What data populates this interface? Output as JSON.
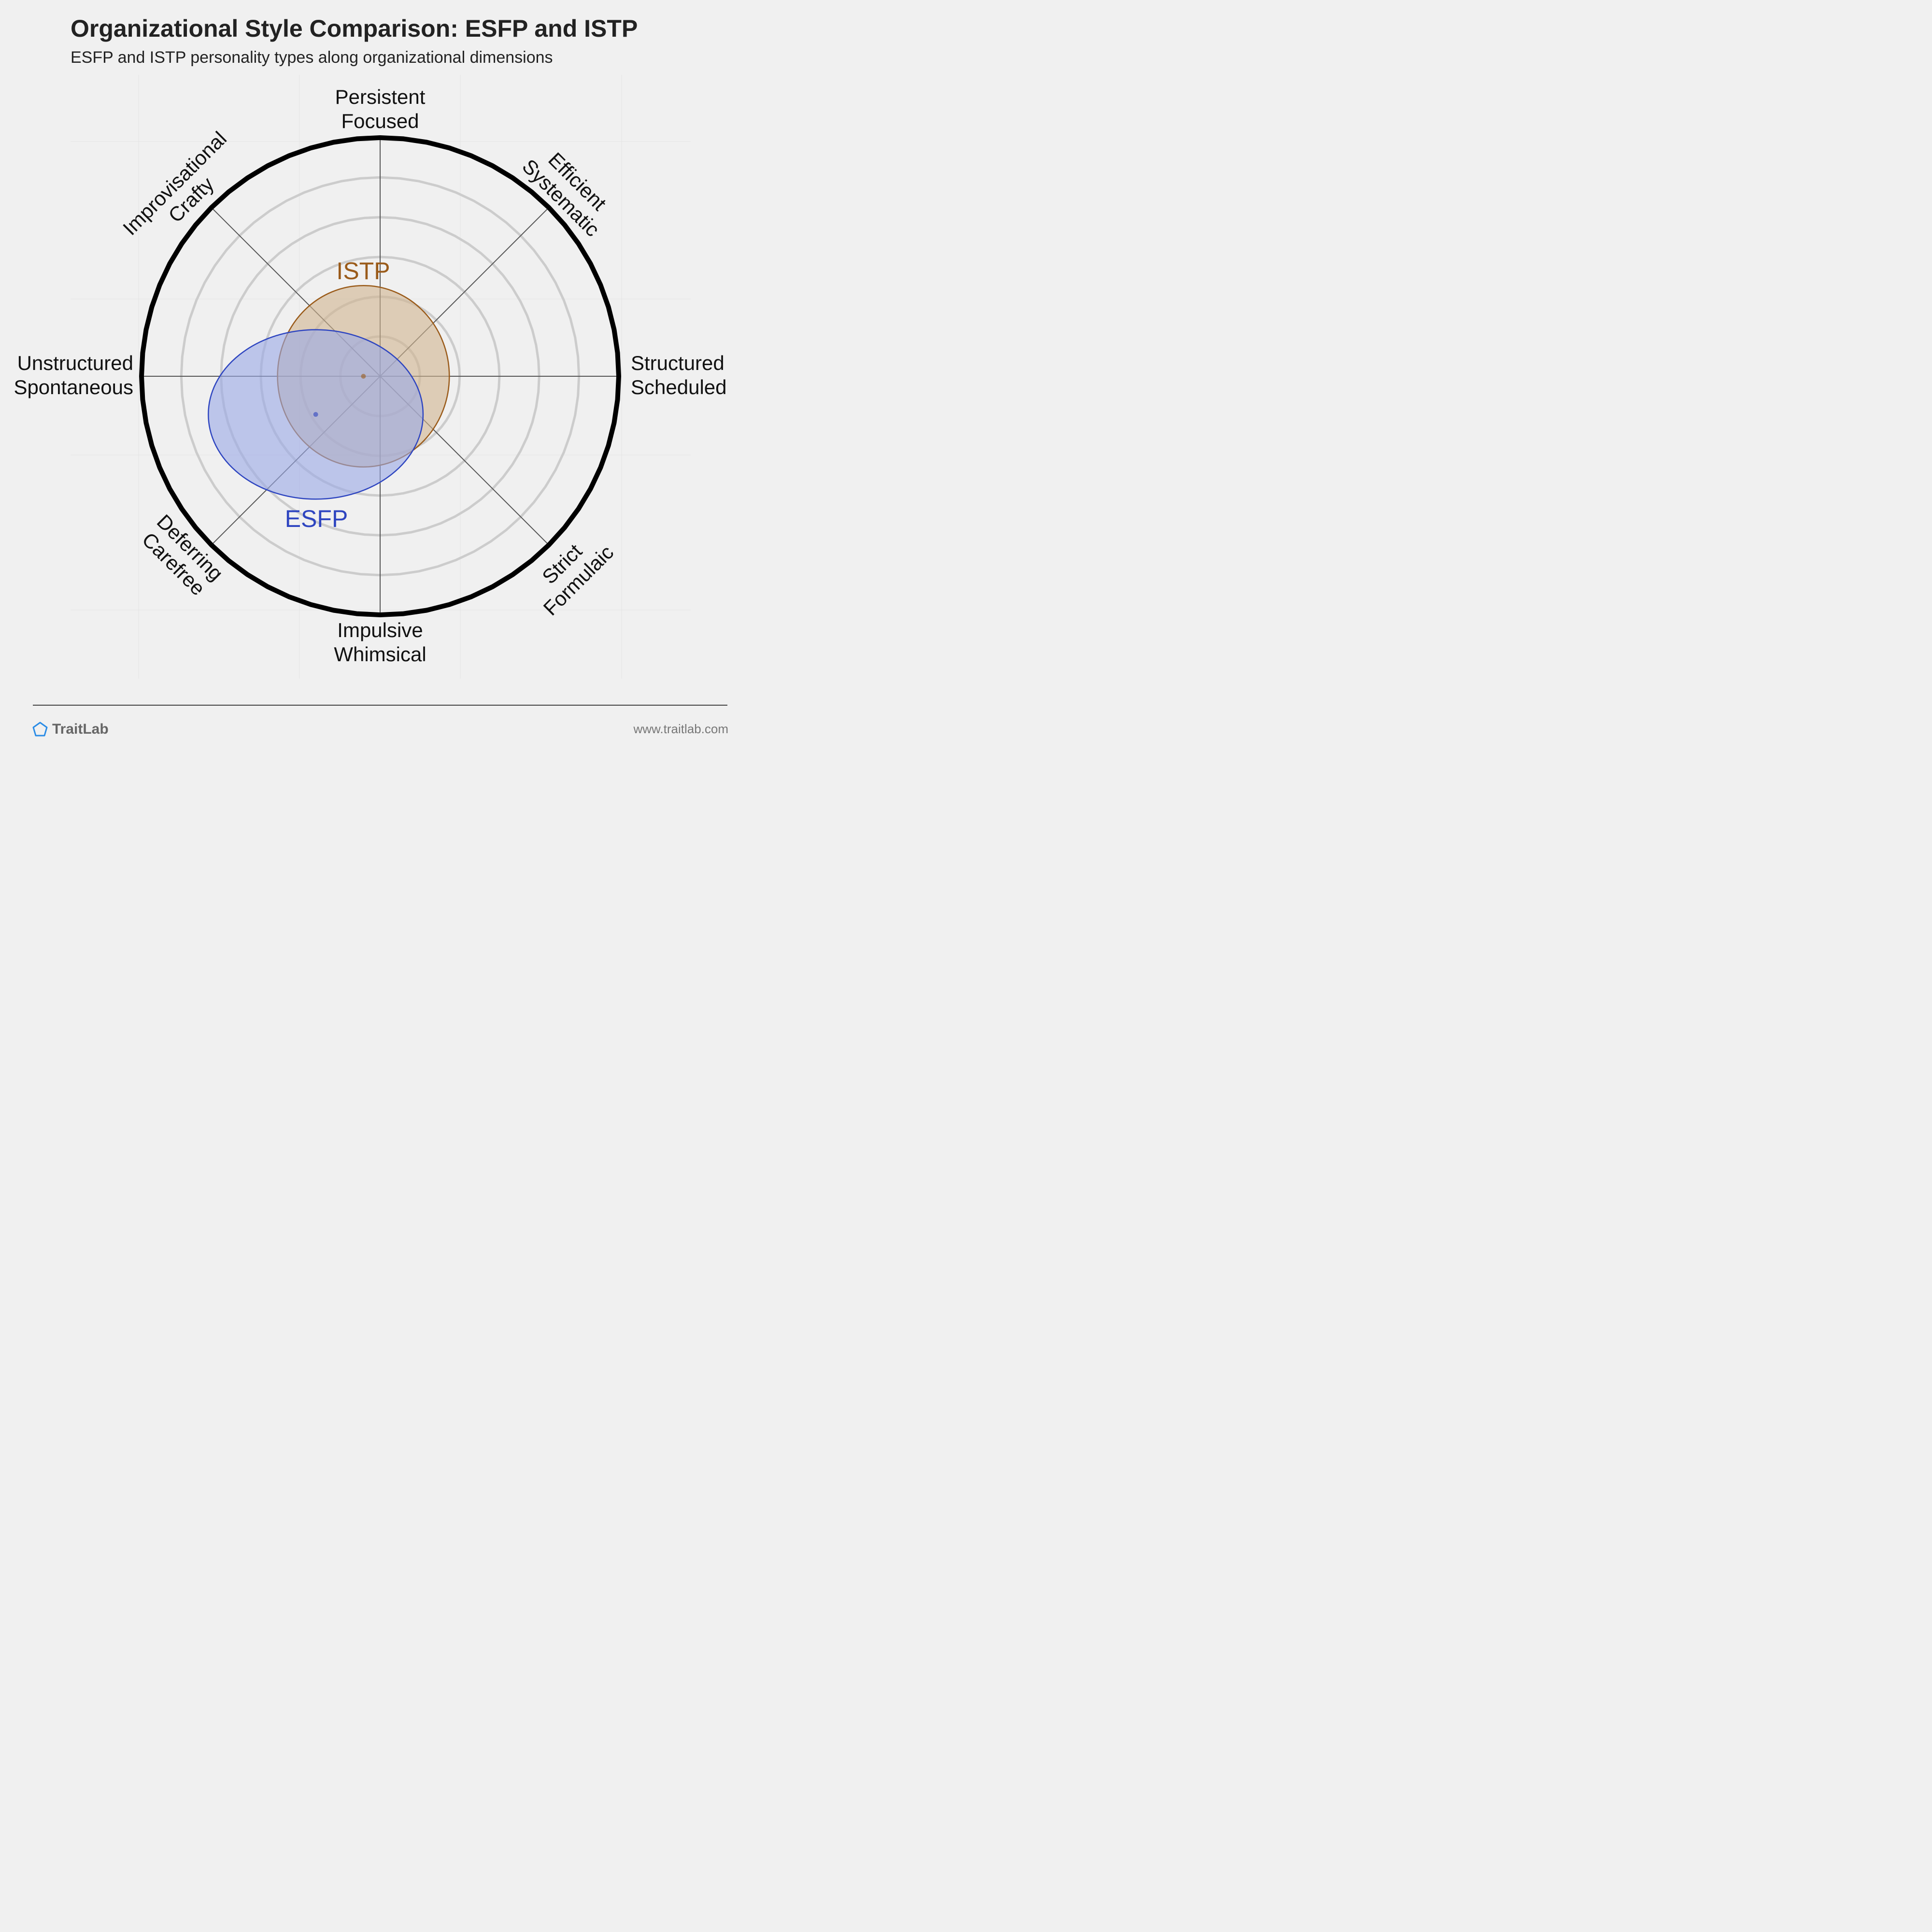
{
  "header": {
    "title": "Organizational Style Comparison: ESFP and ISTP",
    "subtitle": "ESFP and ISTP personality types along organizational dimensions"
  },
  "chart_data": {
    "type": "polar",
    "axes": [
      {
        "direction": "top",
        "labels": [
          "Persistent",
          "Focused"
        ]
      },
      {
        "direction": "top-right",
        "labels": [
          "Efficient",
          "Systematic"
        ]
      },
      {
        "direction": "right",
        "labels": [
          "Structured",
          "Scheduled"
        ]
      },
      {
        "direction": "bottom-right",
        "labels": [
          "Strict",
          "Formulaic"
        ]
      },
      {
        "direction": "bottom",
        "labels": [
          "Impulsive",
          "Whimsical"
        ]
      },
      {
        "direction": "bottom-left",
        "labels": [
          "Deferring",
          "Carefree"
        ]
      },
      {
        "direction": "left",
        "labels": [
          "Unstructured",
          "Spontaneous"
        ]
      },
      {
        "direction": "top-left",
        "labels": [
          "Improvisational",
          "Crafty"
        ]
      }
    ],
    "rings": 6,
    "range": [
      -1,
      1
    ],
    "series": [
      {
        "name": "ISTP",
        "color": "#9a5b1a",
        "fill": "#d0b48f",
        "center": {
          "x": -0.07,
          "y": 0.0
        },
        "spread": {
          "x": 0.72,
          "y": 0.76
        }
      },
      {
        "name": "ESFP",
        "color": "#2e45c0",
        "fill": "#9aa8e6",
        "center": {
          "x": -0.27,
          "y": -0.16
        },
        "spread": {
          "x": 0.9,
          "y": 0.71
        }
      }
    ]
  },
  "footer": {
    "brand": "TraitLab",
    "url": "www.traitlab.com"
  },
  "colors": {
    "background": "#f0f0f0",
    "outer_ring": "#000000",
    "grid_ring": "#cccccc",
    "axis": "#555555"
  }
}
